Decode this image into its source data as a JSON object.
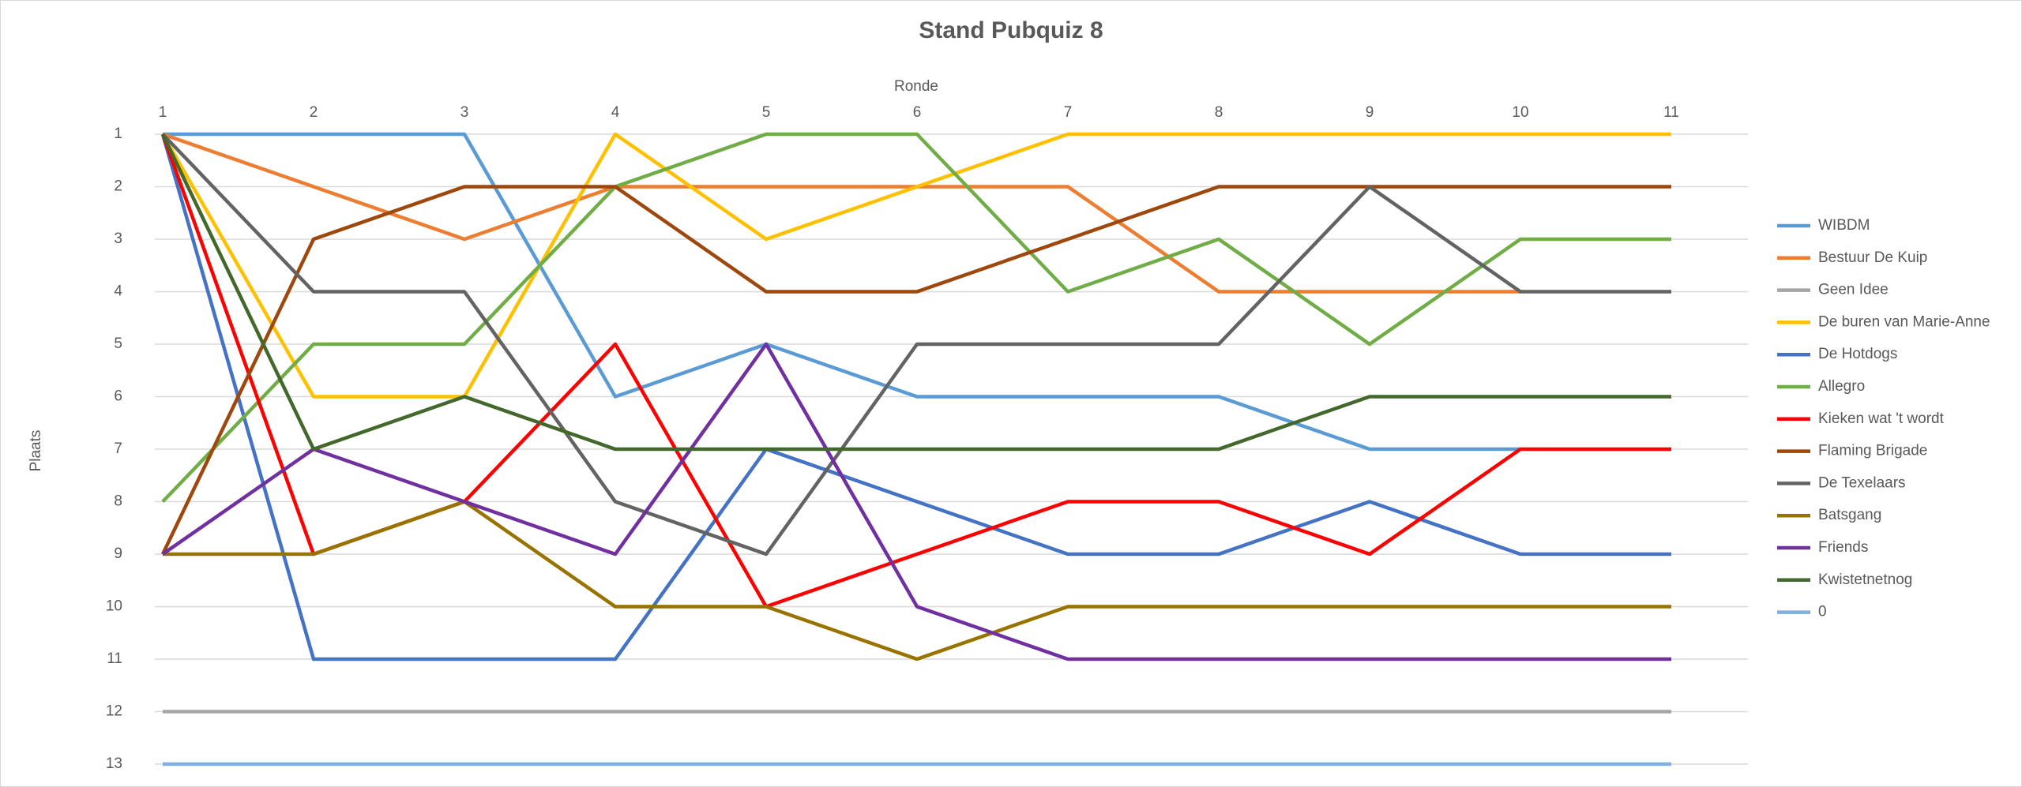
{
  "chart_data": {
    "type": "line",
    "title": "Stand Pubquiz 8",
    "x_label": "Ronde",
    "y_label": "Plaats",
    "x": [
      1,
      2,
      3,
      4,
      5,
      6,
      7,
      8,
      9,
      10,
      11
    ],
    "xlim": [
      1,
      11
    ],
    "xticks": [
      1,
      2,
      3,
      4,
      5,
      6,
      7,
      8,
      9,
      10,
      11
    ],
    "x_axis_position": "top",
    "ylim": [
      1,
      13
    ],
    "yticks": [
      1,
      2,
      3,
      4,
      5,
      6,
      7,
      8,
      9,
      10,
      11,
      12,
      13
    ],
    "y_inverted": true,
    "grid": true,
    "legend": "right",
    "series": [
      {
        "name": "WIBDM",
        "color": "#5b9bd5",
        "values": [
          1,
          1,
          1,
          6,
          5,
          6,
          6,
          6,
          7,
          7,
          null
        ]
      },
      {
        "name": "Bestuur De Kuip",
        "color": "#ed7d31",
        "values": [
          1,
          2,
          3,
          2,
          2,
          2,
          2,
          4,
          4,
          4,
          null
        ]
      },
      {
        "name": "Geen Idee",
        "color": "#a5a5a5",
        "values": [
          12,
          12,
          12,
          12,
          12,
          12,
          12,
          12,
          12,
          12,
          12
        ]
      },
      {
        "name": "De buren van Marie-Anne",
        "color": "#ffc000",
        "values": [
          1,
          6,
          6,
          1,
          3,
          2,
          1,
          1,
          1,
          1,
          1
        ]
      },
      {
        "name": "De Hotdogs",
        "color": "#4472c4",
        "values": [
          1,
          11,
          11,
          11,
          7,
          8,
          9,
          9,
          8,
          9,
          9
        ]
      },
      {
        "name": "Allegro",
        "color": "#70ad47",
        "values": [
          8,
          5,
          5,
          2,
          1,
          1,
          4,
          3,
          5,
          3,
          3
        ]
      },
      {
        "name": "Kieken wat 't wordt",
        "color": "#ff0000",
        "values": [
          1,
          9,
          8,
          5,
          10,
          9,
          8,
          8,
          9,
          7,
          7
        ]
      },
      {
        "name": "Flaming Brigade",
        "color": "#9e480e",
        "values": [
          9,
          3,
          2,
          2,
          4,
          4,
          3,
          2,
          2,
          2,
          2
        ]
      },
      {
        "name": "De Texelaars",
        "color": "#636363",
        "values": [
          1,
          4,
          4,
          8,
          9,
          5,
          5,
          5,
          2,
          4,
          4
        ]
      },
      {
        "name": "Batsgang",
        "color": "#997300",
        "values": [
          9,
          9,
          8,
          10,
          10,
          11,
          10,
          10,
          10,
          10,
          10
        ]
      },
      {
        "name": "Friends",
        "color": "#7030a0",
        "values": [
          9,
          7,
          8,
          9,
          5,
          10,
          11,
          11,
          11,
          11,
          11
        ]
      },
      {
        "name": "Kwistetnetnog",
        "color": "#43682b",
        "values": [
          1,
          7,
          6,
          7,
          7,
          7,
          7,
          7,
          6,
          6,
          6
        ]
      },
      {
        "name": "0",
        "color": "#7fb0e0",
        "values": [
          13,
          13,
          13,
          13,
          13,
          13,
          13,
          13,
          13,
          13,
          13
        ]
      }
    ]
  }
}
